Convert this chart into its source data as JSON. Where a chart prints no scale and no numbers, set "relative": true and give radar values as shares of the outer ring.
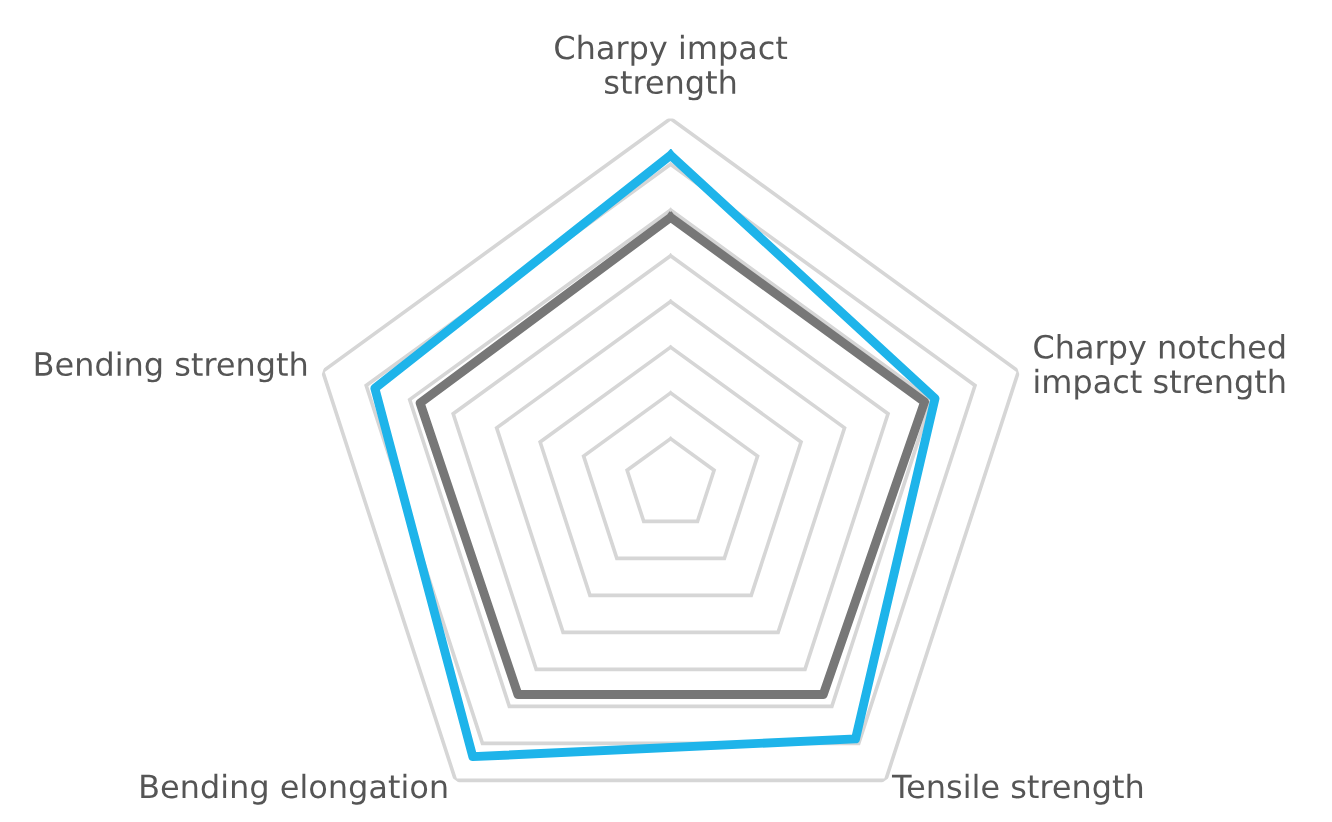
{
  "chart_data": {
    "type": "radar",
    "relative": true,
    "grid": true,
    "categories": [
      "Charpy impact\nstrength",
      "Charpy notched\nimpact strength",
      "Tensile strength",
      "Bending elongation",
      "Bending strength"
    ],
    "series": [
      {
        "color": "#1eb4ea",
        "values": [
          0.9,
          0.76,
          0.86,
          0.92,
          0.85
        ]
      },
      {
        "color": "#777777",
        "values": [
          0.73,
          0.73,
          0.71,
          0.71,
          0.72
        ]
      }
    ]
  }
}
